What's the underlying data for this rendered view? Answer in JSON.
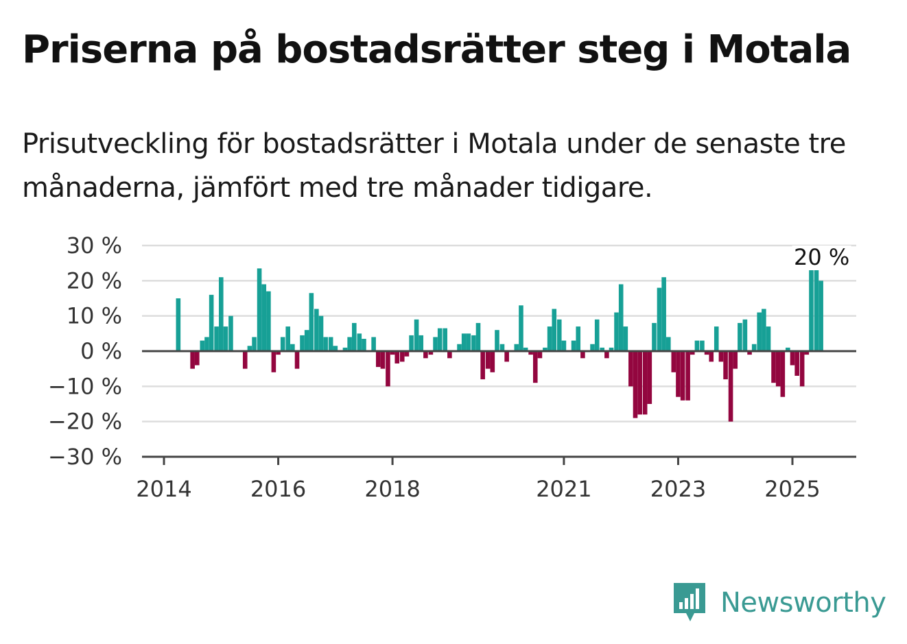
{
  "title": "Priserna på bostadsrätter steg i Motala",
  "subtitle": "Prisutveckling för bostadsrätter i Motala under de senaste tre månaderna, jämfört med tre månader tidigare.",
  "brand": {
    "name": "Newsworthy",
    "icon": "newsworthy-logo-icon",
    "color": "#3a9a93"
  },
  "colors": {
    "positive": "#17a096",
    "negative": "#93063f",
    "grid": "#dddddd",
    "axis": "#444444"
  },
  "chart_data": {
    "type": "bar",
    "title": "Priserna på bostadsrätter steg i Motala",
    "unit": "%",
    "ylim": [
      -30,
      30
    ],
    "y_ticks": [
      30,
      20,
      10,
      0,
      -10,
      -20,
      -30
    ],
    "y_tick_labels": [
      "30 %",
      "20 %",
      "10 %",
      "0 %",
      "−10 %",
      "−20 %",
      "−30 %"
    ],
    "x_tick_labels": [
      "2014",
      "2016",
      "2018",
      "2021",
      "2023",
      "2025"
    ],
    "x_tick_positions": [
      2014,
      2016,
      2018,
      2021,
      2023,
      2025
    ],
    "x_range": [
      2013.7,
      2026.1
    ],
    "grid": true,
    "annotation": {
      "text": "20 %",
      "x": 2025.5,
      "value": 20
    },
    "series": [
      {
        "values": [
          {
            "x": 2014.25,
            "v": 15
          },
          {
            "x": 2014.5,
            "v": -5
          },
          {
            "x": 2014.58,
            "v": -4
          },
          {
            "x": 2014.67,
            "v": 3
          },
          {
            "x": 2014.75,
            "v": 4
          },
          {
            "x": 2014.83,
            "v": 16
          },
          {
            "x": 2014.92,
            "v": 7
          },
          {
            "x": 2015.0,
            "v": 21
          },
          {
            "x": 2015.08,
            "v": 7
          },
          {
            "x": 2015.17,
            "v": 10
          },
          {
            "x": 2015.42,
            "v": -5
          },
          {
            "x": 2015.5,
            "v": 1.5
          },
          {
            "x": 2015.58,
            "v": 4
          },
          {
            "x": 2015.67,
            "v": 23.5
          },
          {
            "x": 2015.75,
            "v": 19
          },
          {
            "x": 2015.83,
            "v": 17
          },
          {
            "x": 2015.92,
            "v": -6
          },
          {
            "x": 2016.0,
            "v": -1
          },
          {
            "x": 2016.08,
            "v": 4
          },
          {
            "x": 2016.17,
            "v": 7
          },
          {
            "x": 2016.25,
            "v": 2
          },
          {
            "x": 2016.33,
            "v": -5
          },
          {
            "x": 2016.42,
            "v": 4.5
          },
          {
            "x": 2016.5,
            "v": 6
          },
          {
            "x": 2016.58,
            "v": 16.5
          },
          {
            "x": 2016.67,
            "v": 12
          },
          {
            "x": 2016.75,
            "v": 10
          },
          {
            "x": 2016.83,
            "v": 4
          },
          {
            "x": 2016.92,
            "v": 4
          },
          {
            "x": 2017.0,
            "v": 1.5
          },
          {
            "x": 2017.17,
            "v": 1
          },
          {
            "x": 2017.25,
            "v": 4
          },
          {
            "x": 2017.33,
            "v": 8
          },
          {
            "x": 2017.42,
            "v": 5
          },
          {
            "x": 2017.5,
            "v": 3.5
          },
          {
            "x": 2017.67,
            "v": 4
          },
          {
            "x": 2017.75,
            "v": -4.5
          },
          {
            "x": 2017.83,
            "v": -5
          },
          {
            "x": 2017.92,
            "v": -10
          },
          {
            "x": 2018.0,
            "v": -1
          },
          {
            "x": 2018.08,
            "v": -3.5
          },
          {
            "x": 2018.17,
            "v": -3
          },
          {
            "x": 2018.25,
            "v": -1.5
          },
          {
            "x": 2018.33,
            "v": 4.5
          },
          {
            "x": 2018.42,
            "v": 9
          },
          {
            "x": 2018.5,
            "v": 4.5
          },
          {
            "x": 2018.58,
            "v": -2
          },
          {
            "x": 2018.67,
            "v": -1
          },
          {
            "x": 2018.75,
            "v": 4
          },
          {
            "x": 2018.83,
            "v": 6.5
          },
          {
            "x": 2018.92,
            "v": 6.5
          },
          {
            "x": 2019.0,
            "v": -2
          },
          {
            "x": 2019.17,
            "v": 2
          },
          {
            "x": 2019.25,
            "v": 5
          },
          {
            "x": 2019.33,
            "v": 5
          },
          {
            "x": 2019.42,
            "v": 4.5
          },
          {
            "x": 2019.5,
            "v": 8
          },
          {
            "x": 2019.58,
            "v": -8
          },
          {
            "x": 2019.67,
            "v": -5
          },
          {
            "x": 2019.75,
            "v": -6
          },
          {
            "x": 2019.83,
            "v": 6
          },
          {
            "x": 2019.92,
            "v": 2
          },
          {
            "x": 2020.0,
            "v": -3
          },
          {
            "x": 2020.17,
            "v": 2
          },
          {
            "x": 2020.25,
            "v": 13
          },
          {
            "x": 2020.33,
            "v": 1
          },
          {
            "x": 2020.42,
            "v": -1
          },
          {
            "x": 2020.5,
            "v": -9
          },
          {
            "x": 2020.58,
            "v": -2
          },
          {
            "x": 2020.67,
            "v": 1
          },
          {
            "x": 2020.75,
            "v": 7
          },
          {
            "x": 2020.83,
            "v": 12
          },
          {
            "x": 2020.92,
            "v": 9
          },
          {
            "x": 2021.0,
            "v": 3
          },
          {
            "x": 2021.17,
            "v": 3
          },
          {
            "x": 2021.25,
            "v": 7
          },
          {
            "x": 2021.33,
            "v": -2
          },
          {
            "x": 2021.5,
            "v": 2
          },
          {
            "x": 2021.58,
            "v": 9
          },
          {
            "x": 2021.67,
            "v": 1
          },
          {
            "x": 2021.75,
            "v": -2
          },
          {
            "x": 2021.83,
            "v": 1
          },
          {
            "x": 2021.92,
            "v": 11
          },
          {
            "x": 2022.0,
            "v": 19
          },
          {
            "x": 2022.08,
            "v": 7
          },
          {
            "x": 2022.17,
            "v": -10
          },
          {
            "x": 2022.25,
            "v": -19
          },
          {
            "x": 2022.33,
            "v": -18
          },
          {
            "x": 2022.42,
            "v": -18
          },
          {
            "x": 2022.5,
            "v": -15
          },
          {
            "x": 2022.58,
            "v": 8
          },
          {
            "x": 2022.67,
            "v": 18
          },
          {
            "x": 2022.75,
            "v": 21
          },
          {
            "x": 2022.83,
            "v": 4
          },
          {
            "x": 2022.92,
            "v": -6
          },
          {
            "x": 2023.0,
            "v": -13
          },
          {
            "x": 2023.08,
            "v": -14
          },
          {
            "x": 2023.17,
            "v": -14
          },
          {
            "x": 2023.25,
            "v": -1
          },
          {
            "x": 2023.33,
            "v": 3
          },
          {
            "x": 2023.42,
            "v": 3
          },
          {
            "x": 2023.5,
            "v": -1
          },
          {
            "x": 2023.58,
            "v": -3
          },
          {
            "x": 2023.67,
            "v": 7
          },
          {
            "x": 2023.75,
            "v": -3
          },
          {
            "x": 2023.83,
            "v": -8
          },
          {
            "x": 2023.92,
            "v": -20
          },
          {
            "x": 2024.0,
            "v": -5
          },
          {
            "x": 2024.08,
            "v": 8
          },
          {
            "x": 2024.17,
            "v": 9
          },
          {
            "x": 2024.25,
            "v": -1
          },
          {
            "x": 2024.33,
            "v": 2
          },
          {
            "x": 2024.42,
            "v": 11
          },
          {
            "x": 2024.5,
            "v": 12
          },
          {
            "x": 2024.58,
            "v": 7
          },
          {
            "x": 2024.67,
            "v": -9
          },
          {
            "x": 2024.75,
            "v": -10
          },
          {
            "x": 2024.83,
            "v": -13
          },
          {
            "x": 2024.92,
            "v": 1
          },
          {
            "x": 2025.0,
            "v": -4
          },
          {
            "x": 2025.08,
            "v": -7
          },
          {
            "x": 2025.17,
            "v": -10
          },
          {
            "x": 2025.25,
            "v": -1
          },
          {
            "x": 2025.33,
            "v": 23
          },
          {
            "x": 2025.42,
            "v": 23
          },
          {
            "x": 2025.5,
            "v": 20
          }
        ]
      }
    ]
  }
}
